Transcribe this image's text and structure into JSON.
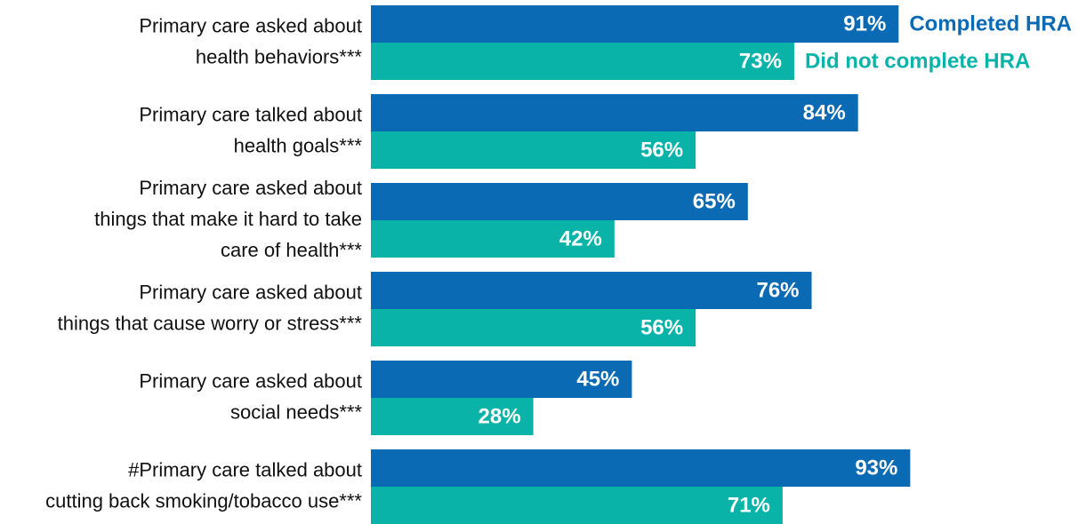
{
  "chart_data": {
    "type": "barh",
    "categories": [
      [
        "Primary care asked about",
        "health behaviors***"
      ],
      [
        "Primary care talked about",
        "health goals***"
      ],
      [
        "Primary care asked about",
        "things that make it hard to take",
        "care of health***"
      ],
      [
        "Primary care asked about",
        "things that cause worry or stress***"
      ],
      [
        "Primary care asked about",
        "social needs***"
      ],
      [
        "#Primary care talked about",
        "cutting back smoking/tobacco use***"
      ]
    ],
    "series": [
      {
        "name": "Completed HRA",
        "color": "#0a6ab4",
        "values": [
          91,
          84,
          65,
          76,
          45,
          93
        ],
        "value_labels": [
          "91%",
          "84%",
          "65%",
          "76%",
          "45%",
          "93%"
        ]
      },
      {
        "name": "Did not complete HRA",
        "color": "#0ab3a8",
        "values": [
          73,
          56,
          42,
          56,
          28,
          71
        ],
        "value_labels": [
          "73%",
          "56%",
          "42%",
          "56%",
          "28%",
          "71%"
        ]
      }
    ],
    "xlim": [
      0,
      100
    ]
  }
}
